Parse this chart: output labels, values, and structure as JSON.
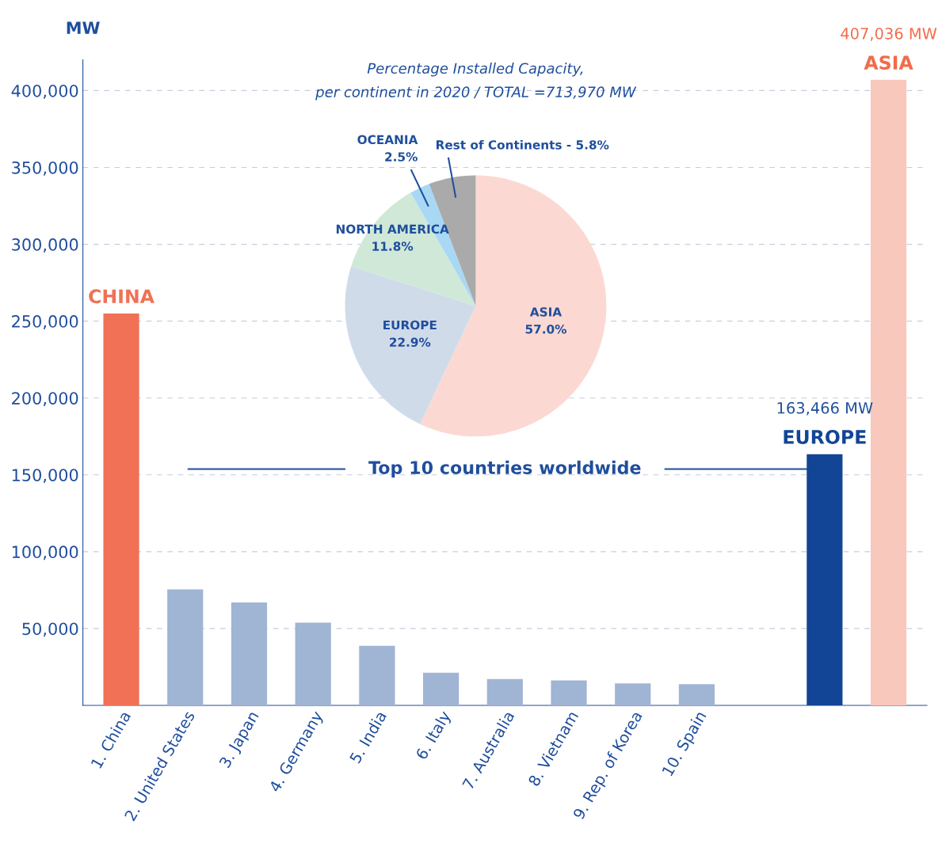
{
  "chart_data": [
    {
      "type": "bar",
      "ylabel": "MW",
      "categories": [
        "1. China",
        "2. United States",
        "3. Japan",
        "4. Germany",
        "5. India",
        "6. Italy",
        "7. Australia",
        "8. Vietnam",
        "9. Rep. of Korea",
        "10. Spain",
        null,
        null,
        null
      ],
      "values": [
        255000,
        75400,
        66900,
        53800,
        38700,
        21300,
        17100,
        16200,
        14300,
        13800,
        null,
        163466,
        407036
      ],
      "colors": [
        "#f07156",
        "#a0b4d4",
        "#a0b4d4",
        "#a0b4d4",
        "#a0b4d4",
        "#a0b4d4",
        "#a0b4d4",
        "#a0b4d4",
        "#a0b4d4",
        "#a0b4d4",
        null,
        "#124596",
        "#f9c8bc"
      ],
      "value_labels": [
        null,
        null,
        null,
        null,
        null,
        null,
        null,
        null,
        null,
        null,
        null,
        "163,466 MW",
        "407,036 MW"
      ],
      "annotations": [
        {
          "text": "CHINA",
          "y": 255000
        },
        {
          "text": "EUROPE",
          "y": 163466
        },
        {
          "text": "ASIA",
          "y": 407036
        },
        "Top 10 countries worldwide"
      ],
      "ylim": [
        0,
        420000
      ],
      "yticks": [
        {
          "value": 50000,
          "label": "50,000"
        },
        {
          "value": 100000,
          "label": "100,000"
        },
        {
          "value": 150000,
          "label": "150,000"
        },
        {
          "value": 200000,
          "label": "200,000"
        },
        {
          "value": 250000,
          "label": "250,000"
        },
        {
          "value": 300000,
          "label": "300,000"
        },
        {
          "value": 350000,
          "label": "350,000"
        },
        {
          "value": 400000,
          "label": "400,000"
        }
      ],
      "grid": "y"
    },
    {
      "type": "pie",
      "title": "Percentage Installed Capacity,\nper continent in 2020 / TOTAL =713,970 MW",
      "categories": [
        "ASIA",
        "EUROPE",
        "NORTH AMERICA",
        "OCEANIA",
        "Rest of Continents"
      ],
      "values": [
        57.0,
        22.9,
        11.8,
        2.5,
        5.8
      ],
      "colors": [
        "#fbd9d2",
        "#d0dbea",
        "#cfe8d8",
        "#a8d8f4",
        "#aaaaaa"
      ],
      "value_labels": [
        "57.0%",
        "22.9%",
        "11.8%",
        "2.5%",
        "5.8%"
      ]
    }
  ]
}
